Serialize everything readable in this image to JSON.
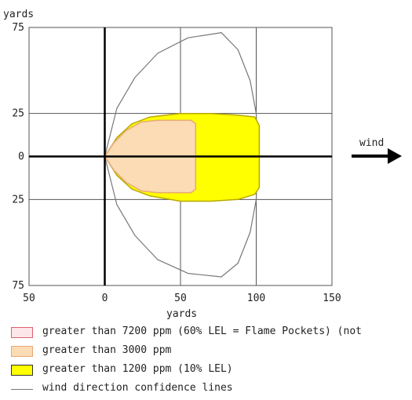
{
  "chart_data": {
    "type": "area",
    "x_unit_label": "yards",
    "y_unit_label": "yards",
    "x_ticks": [
      "50",
      "0",
      "50",
      "100",
      "150"
    ],
    "x_tick_values": [
      -50,
      0,
      50,
      100,
      150
    ],
    "y_ticks": [
      "75",
      "25",
      "0",
      "25",
      "75"
    ],
    "y_tick_values": [
      75,
      25,
      0,
      -25,
      -75
    ],
    "xlim": [
      -50,
      150
    ],
    "ylim": [
      -75,
      75
    ],
    "grid": true,
    "wind_label": "wind",
    "series": [
      {
        "name": "wind direction confidence lines",
        "kind": "line",
        "color": "#777777",
        "points": [
          [
            0,
            0
          ],
          [
            8,
            28
          ],
          [
            20,
            46
          ],
          [
            35,
            60
          ],
          [
            55,
            69
          ],
          [
            77,
            72
          ],
          [
            88,
            62
          ],
          [
            96,
            44
          ],
          [
            100,
            25
          ],
          [
            101,
            0
          ],
          [
            100,
            -25
          ],
          [
            96,
            -44
          ],
          [
            88,
            -62
          ],
          [
            77,
            -70
          ],
          [
            55,
            -68
          ],
          [
            35,
            -60
          ],
          [
            20,
            -46
          ],
          [
            8,
            -28
          ],
          [
            0,
            0
          ]
        ]
      },
      {
        "name": "greater than 1200 ppm (10% LEL)",
        "kind": "area",
        "color": "#ffff00",
        "edge": "#b8a800",
        "points": [
          [
            0,
            0
          ],
          [
            8,
            11
          ],
          [
            18,
            19
          ],
          [
            30,
            23
          ],
          [
            50,
            25
          ],
          [
            70,
            25
          ],
          [
            88,
            24
          ],
          [
            99,
            23
          ],
          [
            102,
            18
          ],
          [
            102,
            -18
          ],
          [
            99,
            -22
          ],
          [
            88,
            -25
          ],
          [
            70,
            -26
          ],
          [
            50,
            -26
          ],
          [
            30,
            -23
          ],
          [
            18,
            -19
          ],
          [
            8,
            -11
          ],
          [
            0,
            0
          ]
        ]
      },
      {
        "name": "greater than 3000 ppm",
        "kind": "area",
        "color": "#fbdcb4",
        "edge": "#e8a878",
        "points": [
          [
            0,
            0
          ],
          [
            6,
            8
          ],
          [
            14,
            15
          ],
          [
            24,
            20
          ],
          [
            35,
            21
          ],
          [
            50,
            21
          ],
          [
            57,
            21
          ],
          [
            60,
            19
          ],
          [
            60,
            -19
          ],
          [
            57,
            -21
          ],
          [
            50,
            -21
          ],
          [
            35,
            -21
          ],
          [
            24,
            -20
          ],
          [
            14,
            -15
          ],
          [
            6,
            -8
          ],
          [
            0,
            0
          ]
        ]
      }
    ],
    "legend": [
      {
        "label": "greater than 7200 ppm (60% LEL = Flame Pockets) (not",
        "fill": "#fde6ea",
        "stroke": "#e06070",
        "kind": "box"
      },
      {
        "label": "greater than 3000 ppm",
        "fill": "#fbdcb4",
        "stroke": "#e8a878",
        "kind": "box"
      },
      {
        "label": "greater than 1200 ppm (10% LEL)",
        "fill": "#ffff00",
        "stroke": "#333333",
        "kind": "box"
      },
      {
        "label": "wind direction confidence lines",
        "fill": "none",
        "stroke": "#777777",
        "kind": "line"
      }
    ]
  }
}
